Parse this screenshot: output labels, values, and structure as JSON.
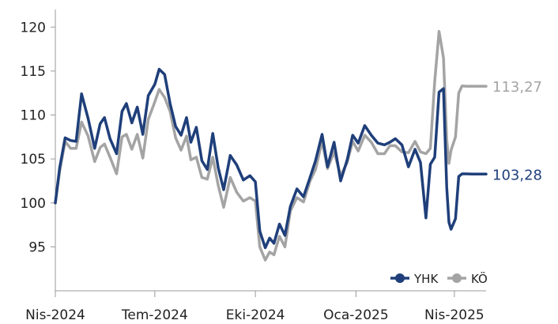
{
  "chart_data": {
    "type": "line",
    "title": "",
    "xlabel": "",
    "ylabel": "",
    "ylim": [
      90,
      122
    ],
    "yticks": [
      95,
      100,
      105,
      110,
      115,
      120
    ],
    "ytick_labels": [
      "95",
      "100",
      "105",
      "110",
      "115",
      "120"
    ],
    "xlim": [
      "2024-04-01",
      "2025-04-30"
    ],
    "xticks": [
      "2024-04-01",
      "2024-07-01",
      "2024-10-01",
      "2025-01-01",
      "2025-04-01"
    ],
    "xtick_labels": [
      "Nis-2024",
      "Tem-2024",
      "Eki-2024",
      "Oca-2025",
      "Nis-2025"
    ],
    "grid": false,
    "legend_position": "bottom-right",
    "series": [
      {
        "name": "YHK",
        "color": "#1f3f7a",
        "end_label": "103,28",
        "x": [
          "2024-04-01",
          "2024-04-05",
          "2024-04-10",
          "2024-04-15",
          "2024-04-20",
          "2024-04-25",
          "2024-05-01",
          "2024-05-07",
          "2024-05-12",
          "2024-05-16",
          "2024-05-21",
          "2024-05-27",
          "2024-06-01",
          "2024-06-05",
          "2024-06-10",
          "2024-06-15",
          "2024-06-20",
          "2024-06-25",
          "2024-07-01",
          "2024-07-05",
          "2024-07-10",
          "2024-07-15",
          "2024-07-20",
          "2024-07-25",
          "2024-07-30",
          "2024-08-03",
          "2024-08-08",
          "2024-08-13",
          "2024-08-18",
          "2024-08-23",
          "2024-08-28",
          "2024-09-02",
          "2024-09-08",
          "2024-09-14",
          "2024-09-20",
          "2024-09-26",
          "2024-10-01",
          "2024-10-05",
          "2024-10-10",
          "2024-10-14",
          "2024-10-18",
          "2024-10-23",
          "2024-10-28",
          "2024-11-02",
          "2024-11-08",
          "2024-11-14",
          "2024-11-20",
          "2024-11-25",
          "2024-12-01",
          "2024-12-06",
          "2024-12-12",
          "2024-12-18",
          "2024-12-24",
          "2024-12-29",
          "2025-01-03",
          "2025-01-09",
          "2025-01-15",
          "2025-01-21",
          "2025-01-27",
          "2025-02-01",
          "2025-02-06",
          "2025-02-12",
          "2025-02-18",
          "2025-02-24",
          "2025-03-01",
          "2025-03-06",
          "2025-03-10",
          "2025-03-14",
          "2025-03-18",
          "2025-03-22",
          "2025-03-25",
          "2025-03-27",
          "2025-03-29",
          "2025-04-02",
          "2025-04-05",
          "2025-04-08",
          "2025-04-12",
          "2025-04-17",
          "2025-04-22",
          "2025-04-30"
        ],
        "values": [
          100.0,
          104.0,
          107.4,
          107.1,
          107.0,
          112.4,
          109.6,
          106.2,
          109.0,
          109.7,
          107.3,
          105.6,
          110.4,
          111.3,
          109.1,
          110.9,
          107.8,
          112.2,
          113.5,
          115.2,
          114.6,
          111.3,
          108.7,
          107.7,
          109.7,
          106.9,
          108.6,
          104.8,
          103.8,
          107.9,
          104.0,
          101.5,
          105.4,
          104.3,
          102.6,
          103.1,
          102.4,
          96.8,
          94.9,
          96.0,
          95.4,
          97.6,
          96.3,
          99.6,
          101.6,
          100.7,
          102.9,
          104.8,
          107.8,
          104.1,
          106.9,
          102.5,
          104.9,
          107.7,
          106.8,
          108.8,
          107.7,
          106.8,
          106.6,
          106.9,
          107.3,
          106.6,
          104.1,
          106.1,
          104.6,
          98.3,
          104.4,
          105.2,
          112.6,
          113.0,
          101.8,
          97.8,
          97.0,
          98.2,
          103.0,
          103.3,
          103.3,
          103.28,
          103.28,
          103.28
        ]
      },
      {
        "name": "KÖ",
        "color": "#a4a4a4",
        "end_label": "113,27",
        "x": [
          "2024-04-01",
          "2024-04-05",
          "2024-04-10",
          "2024-04-15",
          "2024-04-20",
          "2024-04-25",
          "2024-05-01",
          "2024-05-07",
          "2024-05-12",
          "2024-05-16",
          "2024-05-21",
          "2024-05-27",
          "2024-06-01",
          "2024-06-05",
          "2024-06-10",
          "2024-06-15",
          "2024-06-20",
          "2024-06-25",
          "2024-07-01",
          "2024-07-05",
          "2024-07-10",
          "2024-07-15",
          "2024-07-20",
          "2024-07-25",
          "2024-07-30",
          "2024-08-03",
          "2024-08-08",
          "2024-08-13",
          "2024-08-18",
          "2024-08-23",
          "2024-08-28",
          "2024-09-02",
          "2024-09-08",
          "2024-09-14",
          "2024-09-20",
          "2024-09-26",
          "2024-10-01",
          "2024-10-05",
          "2024-10-10",
          "2024-10-14",
          "2024-10-18",
          "2024-10-23",
          "2024-10-28",
          "2024-11-02",
          "2024-11-08",
          "2024-11-14",
          "2024-11-20",
          "2024-11-25",
          "2024-12-01",
          "2024-12-06",
          "2024-12-12",
          "2024-12-18",
          "2024-12-24",
          "2024-12-29",
          "2025-01-03",
          "2025-01-09",
          "2025-01-15",
          "2025-01-21",
          "2025-01-27",
          "2025-02-01",
          "2025-02-06",
          "2025-02-12",
          "2025-02-18",
          "2025-02-24",
          "2025-03-01",
          "2025-03-06",
          "2025-03-10",
          "2025-03-14",
          "2025-03-18",
          "2025-03-22",
          "2025-03-25",
          "2025-03-27",
          "2025-03-29",
          "2025-04-02",
          "2025-04-05",
          "2025-04-08",
          "2025-04-12",
          "2025-04-17",
          "2025-04-22",
          "2025-04-30"
        ],
        "values": [
          100.0,
          103.6,
          107.0,
          106.2,
          106.2,
          109.2,
          107.6,
          104.7,
          106.3,
          106.7,
          105.2,
          103.3,
          107.5,
          107.8,
          106.1,
          107.8,
          105.1,
          109.5,
          111.5,
          112.9,
          112.0,
          110.4,
          107.4,
          106.0,
          107.6,
          104.9,
          105.2,
          102.9,
          102.7,
          105.2,
          102.0,
          99.5,
          102.9,
          101.2,
          100.2,
          100.6,
          100.2,
          95.0,
          93.5,
          94.4,
          94.1,
          96.2,
          95.0,
          99.1,
          100.6,
          100.1,
          102.5,
          103.8,
          107.0,
          103.9,
          105.8,
          103.1,
          104.6,
          107.0,
          105.9,
          107.7,
          106.9,
          105.6,
          105.6,
          106.5,
          106.5,
          105.8,
          105.7,
          107.0,
          105.8,
          105.6,
          106.2,
          113.8,
          119.5,
          116.5,
          107.2,
          104.5,
          106.0,
          107.5,
          112.5,
          113.3,
          113.27,
          113.27,
          113.27,
          113.27
        ]
      }
    ]
  }
}
